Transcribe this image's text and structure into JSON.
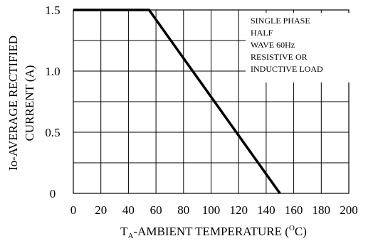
{
  "chart_data": {
    "type": "line",
    "title": "",
    "xlabel": {
      "prefix": "T",
      "sub": "A",
      "mid": "-AMBIENT TEMPERATURE (",
      "sup": "O",
      "suffix": "C)"
    },
    "ylabel": {
      "line1": "Io-AVERAGE RECTIFIED",
      "line2": "CURRENT (A)"
    },
    "xlim": [
      0,
      200
    ],
    "ylim": [
      0,
      1.5
    ],
    "xticks": [
      "0",
      "20",
      "40",
      "60",
      "80",
      "100",
      "120",
      "140",
      "160",
      "180",
      "200"
    ],
    "yticks": [
      "0",
      "0.5",
      "1.0",
      "1.5"
    ],
    "grid": true,
    "series": [
      {
        "x": [
          0,
          55,
          150
        ],
        "y": [
          1.5,
          1.5,
          0
        ]
      }
    ],
    "annotation": [
      "SINGLE PHASE",
      "HALF",
      "WAVE 60Hz",
      "RESISTIVE OR",
      "INDUCTIVE LOAD"
    ],
    "colors": {
      "line": "#000000",
      "grid": "#000000",
      "background": "#ffffff"
    }
  }
}
